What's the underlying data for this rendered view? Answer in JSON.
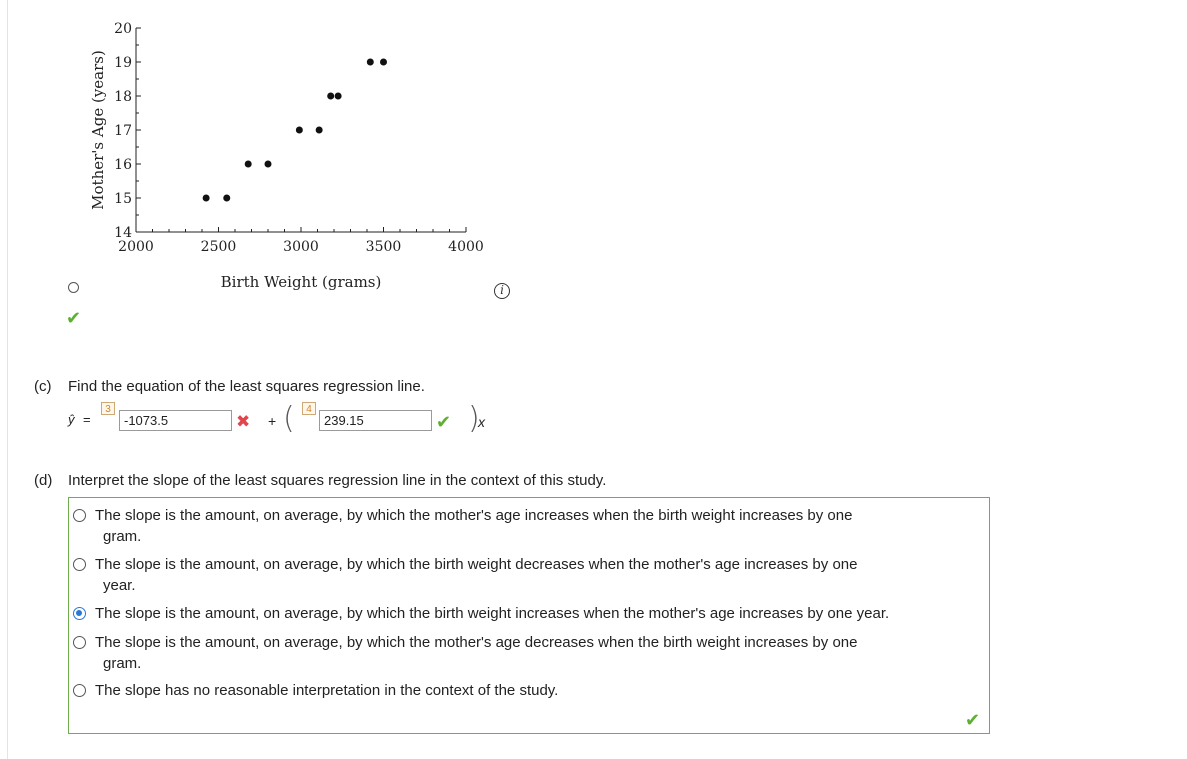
{
  "chart_data": {
    "type": "scatter",
    "xlabel": "Birth Weight (grams)",
    "ylabel": "Mother's Age (years)",
    "xlim": [
      2000,
      4000
    ],
    "ylim": [
      14,
      20
    ],
    "x_ticks": [
      "2000",
      "2500",
      "3000",
      "3500",
      "4000"
    ],
    "y_ticks": [
      "14",
      "15",
      "16",
      "17",
      "18",
      "19",
      "20"
    ],
    "points": [
      {
        "x": 2425,
        "y": 15
      },
      {
        "x": 2550,
        "y": 15
      },
      {
        "x": 2680,
        "y": 16
      },
      {
        "x": 2800,
        "y": 16
      },
      {
        "x": 2990,
        "y": 17
      },
      {
        "x": 3110,
        "y": 17
      },
      {
        "x": 3180,
        "y": 18
      },
      {
        "x": 3225,
        "y": 18
      },
      {
        "x": 3420,
        "y": 19
      },
      {
        "x": 3500,
        "y": 19
      }
    ],
    "grid": false
  },
  "part_c": {
    "label": "(c)",
    "prompt": "Find the equation of the least squares regression line.",
    "yhat_symbol": "ŷ",
    "equals": "=",
    "intercept_badge": "3",
    "intercept_value": "-1073.5",
    "intercept_status": "incorrect",
    "plus": "+",
    "open_paren": "(",
    "slope_badge": "4",
    "slope_value": "239.15",
    "slope_status": "correct",
    "close_paren": ")",
    "x_symbol": "x"
  },
  "part_d": {
    "label": "(d)",
    "prompt": "Interpret the slope of the least squares regression line in the context of this study.",
    "options": [
      {
        "line1": "The slope is the amount, on average, by which the mother's age increases when the birth weight increases by one",
        "line2": "gram.",
        "selected": false
      },
      {
        "line1": "The slope is the amount, on average, by which the birth weight decreases when the mother's age increases by one",
        "line2": "year.",
        "selected": false
      },
      {
        "line1": "The slope is the amount, on average, by which the birth weight increases when the mother's age increases by one year.",
        "line2": "",
        "selected": true
      },
      {
        "line1": "The slope is the amount, on average, by which the mother's age decreases when the birth weight increases by one",
        "line2": "gram.",
        "selected": false
      },
      {
        "line1": "The slope has no reasonable interpretation in the context of the study.",
        "line2": "",
        "selected": false
      }
    ]
  },
  "icons": {
    "check": "✔",
    "cross": "✖",
    "info": "i"
  },
  "colors": {
    "correct": "#5cb030",
    "incorrect": "#e0464b",
    "selected": "#2a78d6",
    "badge": "#d0882c",
    "box_border": "#6fae4b"
  }
}
